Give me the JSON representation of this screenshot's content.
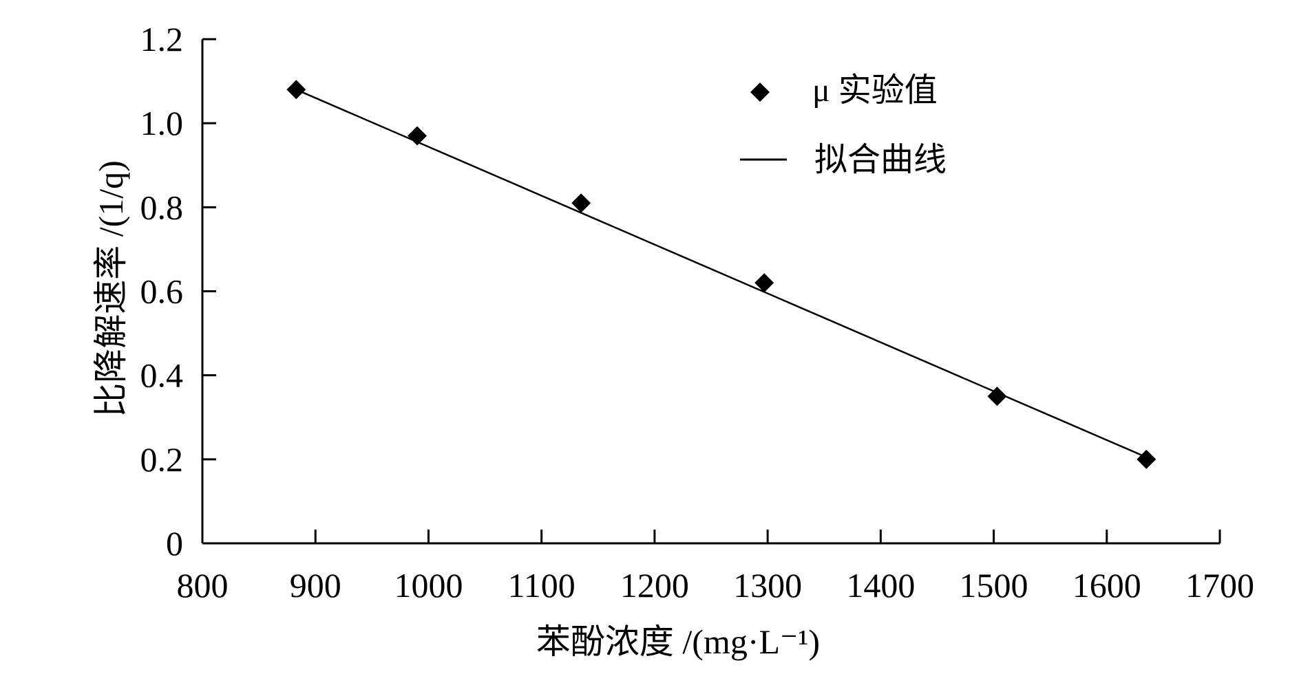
{
  "chart_data": {
    "type": "scatter",
    "title": "",
    "xlabel": "苯酚浓度 /(mg·L⁻¹)",
    "ylabel": "比降解速率 /(1/q)",
    "xlim": [
      800,
      1700
    ],
    "ylim": [
      0,
      1.2
    ],
    "xticks": [
      "800",
      "900",
      "1000",
      "1100",
      "1200",
      "1300",
      "1400",
      "1500",
      "1600",
      "1700"
    ],
    "yticks": [
      "0",
      "0.2",
      "0.4",
      "0.6",
      "0.8",
      "1.0",
      "1.2"
    ],
    "grid": false,
    "legend_position": "top-right",
    "series": [
      {
        "name": "μ 实验值",
        "kind": "scatter",
        "marker": "diamond",
        "x": [
          883,
          990,
          1135,
          1297,
          1503,
          1635
        ],
        "y": [
          1.08,
          0.97,
          0.81,
          0.62,
          0.35,
          0.2
        ]
      },
      {
        "name": "拟合曲线",
        "kind": "line",
        "x": [
          883,
          1635
        ],
        "y": [
          1.08,
          0.205
        ]
      }
    ]
  }
}
